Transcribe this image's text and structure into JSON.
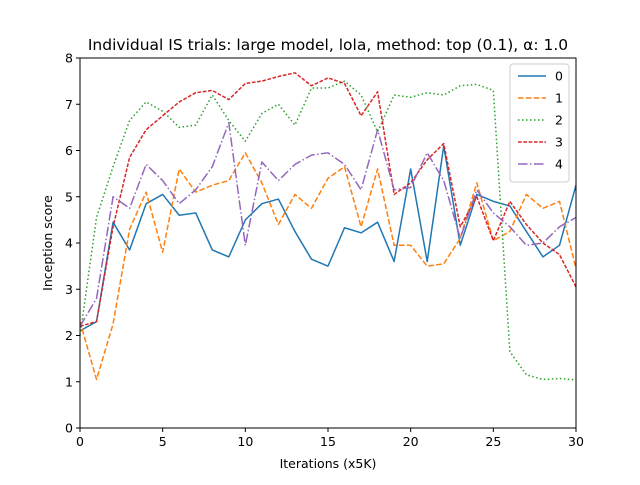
{
  "chart_data": {
    "type": "line",
    "title": "Individual IS trials: large model, lola, method: top (0.1), α: 1.0",
    "xlabel": "Iterations (x5K)",
    "ylabel": "Inception score",
    "xlim": [
      0,
      30
    ],
    "ylim": [
      0,
      8
    ],
    "xticks": [
      0,
      5,
      10,
      15,
      20,
      25,
      30
    ],
    "yticks": [
      0,
      1,
      2,
      3,
      4,
      5,
      6,
      7,
      8
    ],
    "grid": false,
    "legend_position": "top-right",
    "x": [
      0,
      1,
      2,
      3,
      4,
      5,
      6,
      7,
      8,
      9,
      10,
      11,
      12,
      13,
      14,
      15,
      16,
      17,
      18,
      19,
      20,
      21,
      22,
      23,
      24,
      25,
      26,
      27,
      28,
      29,
      30
    ],
    "series": [
      {
        "name": "0",
        "color": "#1f77b4",
        "dash": "solid",
        "values": [
          2.1,
          2.3,
          4.45,
          3.85,
          4.85,
          5.05,
          4.6,
          4.65,
          3.85,
          3.7,
          4.5,
          4.85,
          4.95,
          4.25,
          3.65,
          3.5,
          4.33,
          4.22,
          4.45,
          3.6,
          5.6,
          3.6,
          6.1,
          3.95,
          5.05,
          4.9,
          4.8,
          4.25,
          3.7,
          3.95,
          5.25
        ]
      },
      {
        "name": "1",
        "color": "#ff7f0e",
        "dash": "dashed",
        "values": [
          2.3,
          1.05,
          2.25,
          4.3,
          5.1,
          3.8,
          5.6,
          5.1,
          5.25,
          5.35,
          5.95,
          5.3,
          4.4,
          5.05,
          4.75,
          5.4,
          5.65,
          4.35,
          5.6,
          3.95,
          3.95,
          3.5,
          3.55,
          4.1,
          5.3,
          4.05,
          4.25,
          5.05,
          4.75,
          4.9,
          3.45
        ]
      },
      {
        "name": "2",
        "color": "#2ca02c",
        "dash": "dotted",
        "values": [
          2.0,
          4.55,
          5.65,
          6.65,
          7.05,
          6.85,
          6.5,
          6.55,
          7.2,
          6.65,
          6.2,
          6.8,
          7.0,
          6.55,
          7.35,
          7.35,
          7.5,
          7.2,
          6.4,
          7.2,
          7.15,
          7.25,
          7.2,
          7.4,
          7.43,
          7.3,
          1.65,
          1.15,
          1.05,
          1.07,
          1.04
        ]
      },
      {
        "name": "3",
        "color": "#d62728",
        "dash": "dashdash",
        "values": [
          2.2,
          2.3,
          4.35,
          5.85,
          6.45,
          6.75,
          7.05,
          7.25,
          7.3,
          7.1,
          7.45,
          7.5,
          7.6,
          7.68,
          7.4,
          7.57,
          7.45,
          6.75,
          7.27,
          5.05,
          5.3,
          5.8,
          6.15,
          4.35,
          5.0,
          4.05,
          4.9,
          4.4,
          4.0,
          3.75,
          3.05
        ]
      },
      {
        "name": "4",
        "color": "#9467bd",
        "dash": "dashdot",
        "values": [
          2.2,
          2.8,
          5.0,
          4.75,
          5.7,
          5.35,
          4.85,
          5.15,
          5.65,
          6.6,
          3.95,
          5.75,
          5.35,
          5.7,
          5.9,
          5.95,
          5.7,
          5.15,
          6.45,
          5.15,
          5.2,
          5.95,
          5.35,
          4.1,
          5.15,
          4.65,
          4.35,
          3.95,
          4.0,
          4.35,
          4.55
        ]
      }
    ]
  }
}
